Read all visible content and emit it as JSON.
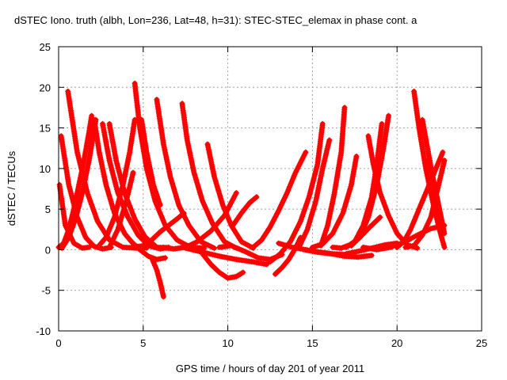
{
  "chart_data": {
    "type": "scatter",
    "title": "dSTEC Iono. truth (albh, Lon=236, Lat=48, h=31): STEC-STEC_elemax in phase cont. a",
    "xlabel": "GPS time / hours of day 201 of year 2011",
    "ylabel": "dSTEC  / TECUs",
    "xlim": [
      0,
      25
    ],
    "ylim": [
      -10,
      25
    ],
    "xticks": [
      0,
      5,
      10,
      15,
      20,
      25
    ],
    "yticks": [
      -10,
      -5,
      0,
      5,
      10,
      15,
      20,
      25
    ],
    "grid": true,
    "marker": "+",
    "color": "#ff0000",
    "series": [
      {
        "x": [
          0.05,
          0.4,
          0.9,
          1.4,
          1.8
        ],
        "y": [
          8,
          3,
          0.8,
          0.2,
          0.3
        ]
      },
      {
        "x": [
          0.15,
          0.6,
          1.1,
          1.6,
          2.1,
          2.6,
          3.1
        ],
        "y": [
          14,
          8,
          4,
          1.5,
          0.4,
          0.1,
          0.3
        ]
      },
      {
        "x": [
          0.55,
          1.1,
          1.7,
          2.3,
          3.0,
          3.8,
          4.6
        ],
        "y": [
          19.5,
          12,
          7,
          3.5,
          1.2,
          0.3,
          0.2
        ]
      },
      {
        "x": [
          0.0,
          0.3,
          0.6,
          0.9,
          1.2,
          1.5,
          1.8,
          1.95
        ],
        "y": [
          0.3,
          0.8,
          2.5,
          5,
          8,
          11,
          14.5,
          16.5
        ]
      },
      {
        "x": [
          0.2,
          0.6,
          1.0,
          1.4,
          1.8,
          2.2
        ],
        "y": [
          0.2,
          1.5,
          3.8,
          7,
          11,
          16
        ]
      },
      {
        "x": [
          2.1,
          2.4,
          2.8,
          3.3,
          3.9,
          4.5,
          5.2
        ],
        "y": [
          16,
          12,
          8,
          4.5,
          2,
          0.5,
          0.2
        ]
      },
      {
        "x": [
          2.6,
          3.0,
          3.5,
          4.1,
          4.7,
          5.3,
          6.0,
          6.5
        ],
        "y": [
          15.5,
          11,
          7,
          4,
          1.8,
          0.5,
          0.1,
          0.3
        ]
      },
      {
        "x": [
          3.0,
          3.4,
          3.9,
          4.5,
          5.1,
          5.8,
          6.5
        ],
        "y": [
          15.5,
          11,
          7,
          3.8,
          1.6,
          0.3,
          0.2
        ]
      },
      {
        "x": [
          2.3,
          2.8,
          3.3,
          3.8,
          4.2,
          4.5
        ],
        "y": [
          0.3,
          1.5,
          4,
          8,
          12,
          16
        ]
      },
      {
        "x": [
          3.0,
          3.5,
          4.0,
          4.4
        ],
        "y": [
          0.3,
          2.5,
          6,
          9.5
        ]
      },
      {
        "x": [
          4.5,
          4.8,
          5.2,
          5.7,
          6.3,
          7.0,
          7.8,
          8.6
        ],
        "y": [
          20.5,
          15,
          10,
          6,
          3,
          1.2,
          0.3,
          0.2
        ]
      },
      {
        "x": [
          4.9,
          5.2,
          5.6,
          6.0
        ],
        "y": [
          16,
          12,
          8,
          5.5
        ]
      },
      {
        "x": [
          4.3,
          4.8,
          5.3,
          5.8,
          6.3
        ],
        "y": [
          1,
          0,
          -0.8,
          -1.2,
          -1
        ]
      },
      {
        "x": [
          5.5,
          5.8,
          6.0,
          6.2
        ],
        "y": [
          -1,
          -2.5,
          -4,
          -5.8
        ]
      },
      {
        "x": [
          5.8,
          6.2,
          6.6,
          7.1,
          7.7,
          8.4,
          9.2
        ],
        "y": [
          18.5,
          13,
          9,
          5.5,
          3,
          1,
          0.2
        ]
      },
      {
        "x": [
          7.3,
          7.6,
          8.0,
          8.5,
          9.1,
          9.8,
          10.5
        ],
        "y": [
          18,
          13.5,
          9.5,
          6,
          3.2,
          1,
          0.2
        ]
      },
      {
        "x": [
          4.5,
          5.0,
          5.5,
          6.0,
          6.5,
          7.0,
          7.4
        ],
        "y": [
          0.3,
          0.5,
          1.2,
          2.2,
          3,
          3.8,
          4.5
        ]
      },
      {
        "x": [
          6.2,
          6.8,
          7.5,
          8.2,
          9.0,
          9.8,
          10.5
        ],
        "y": [
          0.3,
          0.1,
          0.3,
          1,
          2.3,
          4.2,
          7
        ]
      },
      {
        "x": [
          8.8,
          9.2,
          9.7,
          10.2,
          10.8,
          11.5
        ],
        "y": [
          13,
          9,
          5.5,
          3,
          1,
          0.2
        ]
      },
      {
        "x": [
          8.5,
          9.0,
          9.5,
          10.0,
          10.5,
          10.9
        ],
        "y": [
          -0.5,
          -1.8,
          -2.8,
          -3.5,
          -3.3,
          -2.8
        ]
      },
      {
        "x": [
          7.5,
          8.5,
          9.5,
          10.5,
          11.5,
          12.3
        ],
        "y": [
          0.2,
          -0.3,
          -0.8,
          -1.2,
          -1.5,
          -1.8
        ]
      },
      {
        "x": [
          9.5,
          10.2,
          11.0,
          11.8,
          12.5,
          13.2
        ],
        "y": [
          0.3,
          0.5,
          -0.2,
          -1,
          -1.2,
          -0.6
        ]
      },
      {
        "x": [
          10.3,
          10.8,
          11.3,
          11.7
        ],
        "y": [
          3,
          4.5,
          5.8,
          6.5
        ]
      },
      {
        "x": [
          11.5,
          12.0,
          12.5,
          13.0,
          13.5,
          14.0,
          14.6
        ],
        "y": [
          0.3,
          1.2,
          2.8,
          4.8,
          7,
          9.5,
          12
        ]
      },
      {
        "x": [
          12.5,
          13.1,
          13.7,
          14.3,
          14.8,
          15.3,
          15.6
        ],
        "y": [
          -1.5,
          -0.5,
          1,
          3.5,
          6.5,
          10.5,
          15.5
        ]
      },
      {
        "x": [
          12.8,
          13.2,
          13.6,
          14.0,
          14.3
        ],
        "y": [
          -3,
          -2.2,
          -1.2,
          0.2,
          1.5
        ]
      },
      {
        "x": [
          13.0,
          13.8,
          14.6,
          15.4,
          16.2,
          17.0
        ],
        "y": [
          0.8,
          0.3,
          0,
          -0.3,
          -0.5,
          -0.6
        ]
      },
      {
        "x": [
          14.2,
          14.7,
          15.2,
          15.6,
          16.0
        ],
        "y": [
          0.3,
          2.5,
          6,
          10,
          13.5
        ]
      },
      {
        "x": [
          14.5,
          15.3,
          16.1,
          16.9,
          17.7,
          18.5
        ],
        "y": [
          0,
          -0.3,
          -0.5,
          -0.8,
          -0.9,
          -0.7
        ]
      },
      {
        "x": [
          15.0,
          15.6,
          16.2,
          16.8,
          17.3,
          17.6
        ],
        "y": [
          0.3,
          0.7,
          2,
          4.5,
          8,
          11.5
        ]
      },
      {
        "x": [
          15.5,
          15.9,
          16.3,
          16.7,
          16.9
        ],
        "y": [
          0.5,
          3,
          7,
          12,
          17.5
        ]
      },
      {
        "x": [
          16.2,
          16.7,
          17.2,
          17.8,
          18.4,
          19.0
        ],
        "y": [
          0.3,
          0.2,
          0.6,
          1.5,
          2.8,
          4
        ]
      },
      {
        "x": [
          17.0,
          17.5,
          18.0,
          18.5,
          18.8,
          19.1
        ],
        "y": [
          0.3,
          1,
          3,
          6.5,
          10.5,
          15.5
        ]
      },
      {
        "x": [
          17.0,
          17.5,
          18.1,
          18.7,
          19.3,
          20.0
        ],
        "y": [
          -0.5,
          -0.3,
          0,
          0.3,
          0.6,
          0.8
        ]
      },
      {
        "x": [
          17.3,
          17.8,
          18.3,
          18.8,
          19.2,
          19.5
        ],
        "y": [
          0.5,
          1.5,
          4,
          8,
          12.5,
          16.5
        ]
      },
      {
        "x": [
          18.3,
          18.6,
          19.0,
          19.5,
          20.0,
          20.6,
          21.2
        ],
        "y": [
          14,
          10.5,
          7,
          4.2,
          2,
          0.6,
          0.2
        ]
      },
      {
        "x": [
          20.0,
          20.4,
          20.8,
          21.2,
          21.7,
          22.2,
          22.7
        ],
        "y": [
          0.3,
          1,
          2.5,
          4.5,
          7,
          9.5,
          12
        ]
      },
      {
        "x": [
          21.0,
          21.3,
          21.7,
          22.1,
          22.5,
          22.8
        ],
        "y": [
          19.5,
          15,
          10,
          6,
          2.5,
          0.3
        ]
      },
      {
        "x": [
          21.5,
          21.8,
          22.2,
          22.6,
          22.8
        ],
        "y": [
          16,
          12.5,
          8,
          4,
          2
        ]
      },
      {
        "x": [
          20.5,
          21.0,
          21.5,
          22.0,
          22.4,
          22.8
        ],
        "y": [
          0.3,
          0.5,
          1.8,
          4,
          7.5,
          11
        ]
      },
      {
        "x": [
          18.0,
          18.8,
          19.6,
          20.4,
          21.2,
          22.0,
          22.8
        ],
        "y": [
          0.3,
          0,
          0.3,
          0.9,
          1.8,
          2.6,
          3
        ]
      },
      {
        "x": [
          21.8,
          22.1,
          22.4,
          22.7
        ],
        "y": [
          11,
          9,
          6,
          3
        ]
      }
    ]
  }
}
